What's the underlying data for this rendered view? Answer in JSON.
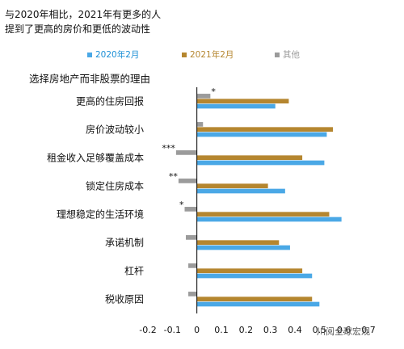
{
  "title_lines": [
    "与2020年相比，2021年有更多的人",
    "提到了更高的房价和更低的波动性"
  ],
  "subtitle": "选择房地产而非股票的理由",
  "watermark": "川阅全球宏观",
  "chart_data": {
    "type": "bar",
    "orientation": "horizontal",
    "categories": [
      "更高的住房回报",
      "房价波动较小",
      "租金收入足够覆盖成本",
      "锁定住房成本",
      "理想稳定的生活环境",
      "承诺机制",
      "杠杆",
      "税收原因"
    ],
    "series": [
      {
        "name": "2020年2月",
        "color": "#4aa8e6",
        "values": [
          0.32,
          0.53,
          0.52,
          0.36,
          0.59,
          0.38,
          0.47,
          0.5
        ]
      },
      {
        "name": "2021年2月",
        "color": "#b5862f",
        "values": [
          0.375,
          0.555,
          0.43,
          0.29,
          0.54,
          0.335,
          0.43,
          0.47
        ]
      },
      {
        "name": "其他",
        "color": "#9b9b9b",
        "values": [
          0.055,
          0.025,
          -0.085,
          -0.075,
          -0.05,
          -0.045,
          -0.035,
          -0.035
        ]
      }
    ],
    "annotations": [
      {
        "category_index": 0,
        "text": "*"
      },
      {
        "category_index": 2,
        "text": "***"
      },
      {
        "category_index": 3,
        "text": "**"
      },
      {
        "category_index": 4,
        "text": "*"
      }
    ],
    "xlim": [
      -0.2,
      0.7
    ],
    "xticks": [
      "-0.2",
      "-0.1",
      "0",
      "0.1",
      "0.2",
      "0.3",
      "0.4",
      "0.5",
      "0.6",
      "0.7"
    ],
    "legend_position": "top",
    "grid": false
  }
}
